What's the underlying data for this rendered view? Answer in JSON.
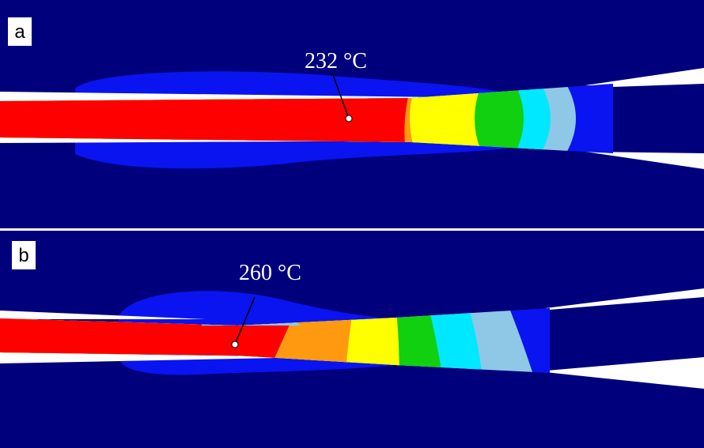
{
  "panels": [
    {
      "label": "a",
      "annotation": "232 °C"
    },
    {
      "label": "b",
      "annotation": "260 °C"
    }
  ]
}
